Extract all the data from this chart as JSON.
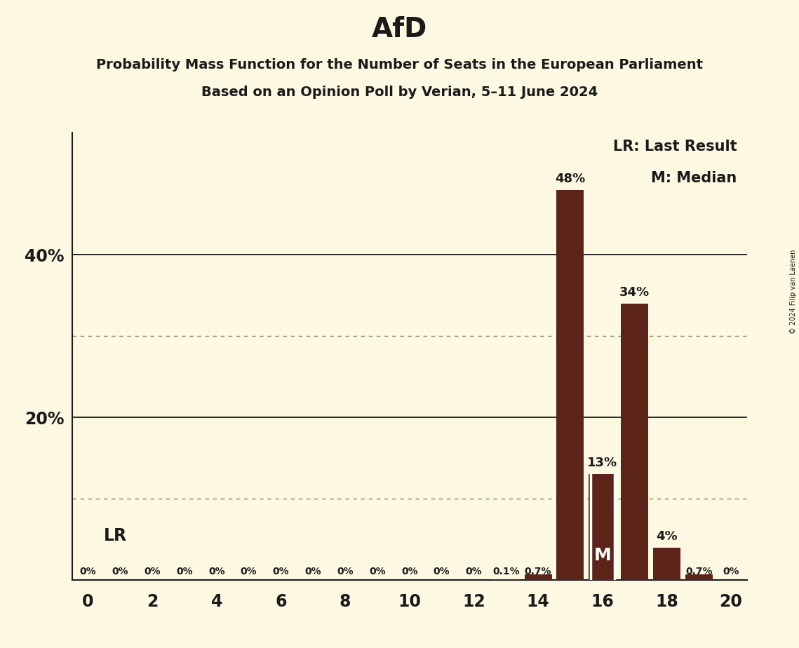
{
  "title": "AfD",
  "subtitle1": "Probability Mass Function for the Number of Seats in the European Parliament",
  "subtitle2": "Based on an Opinion Poll by Verian, 5–11 June 2024",
  "copyright": "© 2024 Filip van Laenen",
  "seats": [
    0,
    1,
    2,
    3,
    4,
    5,
    6,
    7,
    8,
    9,
    10,
    11,
    12,
    13,
    14,
    15,
    16,
    17,
    18,
    19,
    20
  ],
  "probabilities": [
    0.0,
    0.0,
    0.0,
    0.0,
    0.0,
    0.0,
    0.0,
    0.0,
    0.0,
    0.0,
    0.0,
    0.0,
    0.0,
    0.1,
    0.7,
    48.0,
    13.0,
    34.0,
    4.0,
    0.7,
    0.0
  ],
  "bar_color": "#5c2318",
  "background_color": "#fdf8e1",
  "text_color": "#1a1a1a",
  "median_seat": 16,
  "lr_seat": 0,
  "yticks_solid": [
    20,
    40
  ],
  "yticks_dotted": [
    10,
    30
  ],
  "xlim": [
    -0.5,
    20.5
  ],
  "ylim": [
    0,
    55
  ],
  "xtick_positions": [
    0,
    2,
    4,
    6,
    8,
    10,
    12,
    14,
    16,
    18,
    20
  ],
  "bar_width": 0.85,
  "label_fontsize": 10,
  "large_label_fontsize": 13,
  "tick_fontsize": 17,
  "title_fontsize": 28,
  "subtitle_fontsize": 14,
  "legend_fontsize": 15
}
